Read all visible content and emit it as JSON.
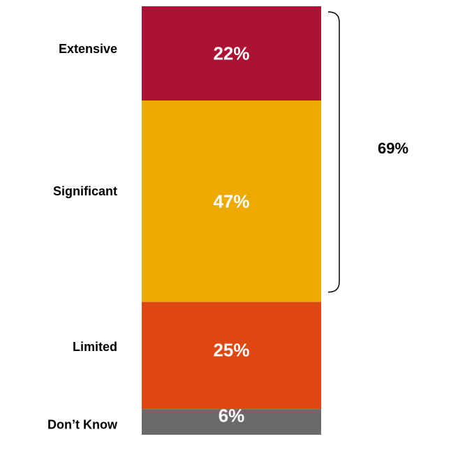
{
  "chart_data": {
    "type": "bar",
    "orientation": "stacked-vertical",
    "categories": [
      "Extensive",
      "Significant",
      "Limited",
      "Don’t Know"
    ],
    "values": [
      22,
      47,
      25,
      6
    ],
    "value_labels": [
      "22%",
      "47%",
      "25%",
      "6%"
    ],
    "colors": [
      "#ab1234",
      "#edaa00",
      "#de4612",
      "#6a6a6a"
    ],
    "bracket": {
      "covers": [
        "Extensive",
        "Significant"
      ],
      "label": "69%"
    },
    "title": "",
    "xlabel": "",
    "ylabel": "",
    "grid": false,
    "legend": "none"
  }
}
